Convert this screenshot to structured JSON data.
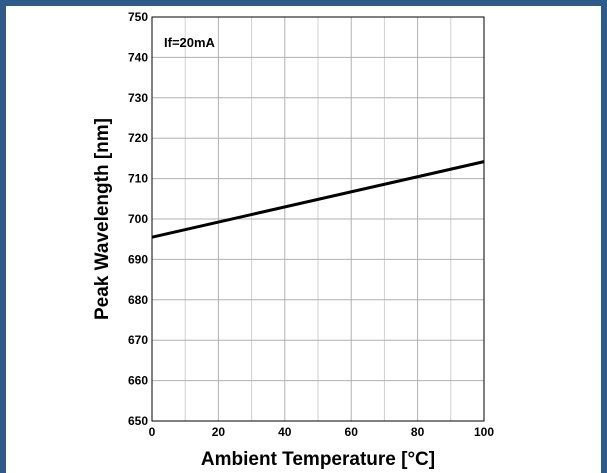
{
  "chart_data": {
    "type": "line",
    "title": "",
    "xlabel": "Ambient Temperature [°C]",
    "ylabel": "Peak Wavelength [nm]",
    "annotation": "If=20mA",
    "xlim": [
      0,
      100
    ],
    "ylim": [
      650,
      750
    ],
    "xticks": [
      0,
      20,
      40,
      60,
      80,
      100
    ],
    "yticks": [
      650,
      660,
      670,
      680,
      690,
      700,
      710,
      720,
      730,
      740,
      750
    ],
    "x_minor_grid": [
      10,
      30,
      50,
      70,
      90
    ],
    "grid": true,
    "line_color": "#000000",
    "series": [
      {
        "x": [
          0,
          100
        ],
        "y": [
          695.5,
          714.2
        ]
      }
    ]
  }
}
